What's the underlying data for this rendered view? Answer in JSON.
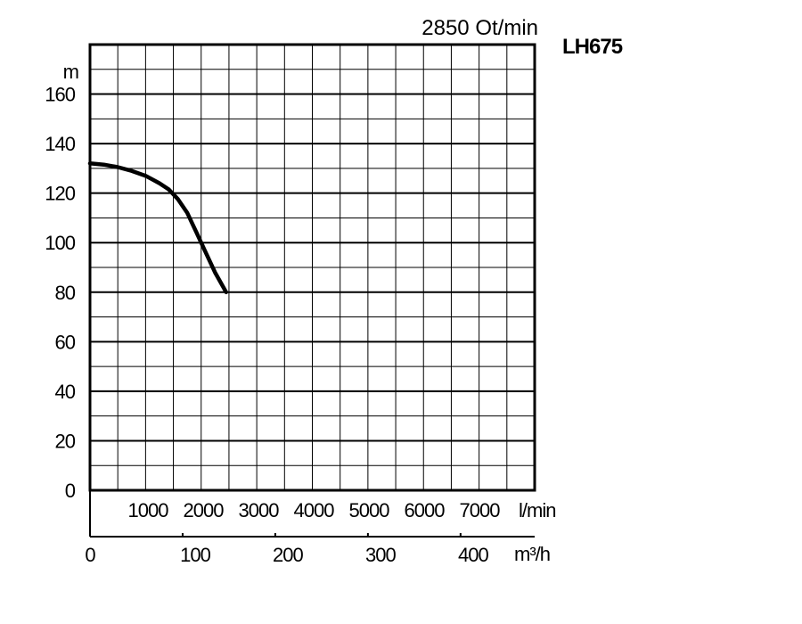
{
  "chart_data": {
    "type": "line",
    "title": "2850 Ot/min",
    "model": "LH675",
    "ylabel": "m",
    "xunit_flow_lmin": "l/min",
    "xunit_flow_m3h": "m³/h",
    "ylim": [
      0,
      180
    ],
    "xlim_m3h": [
      0,
      480
    ],
    "y_ticks": [
      "0",
      "20",
      "40",
      "60",
      "80",
      "100",
      "120",
      "140",
      "160"
    ],
    "lmin_ticks": [
      "1000",
      "2000",
      "3000",
      "4000",
      "5000",
      "6000",
      "7000"
    ],
    "m3h_ticks": [
      "0",
      "100",
      "200",
      "300",
      "400"
    ],
    "grid": true,
    "series": [
      {
        "x": [
          0,
          15,
          30,
          45,
          60,
          75,
          85,
          95,
          105,
          115,
          125,
          135,
          147
        ],
        "y": [
          132,
          131.5,
          130.5,
          129,
          127,
          124,
          121.5,
          117.5,
          112,
          104,
          96,
          88,
          80
        ]
      }
    ]
  }
}
